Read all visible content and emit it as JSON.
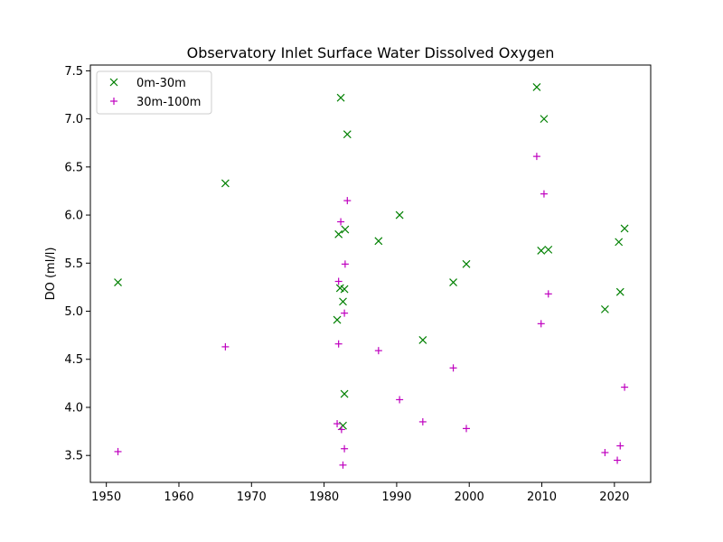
{
  "chart_data": {
    "type": "scatter",
    "title": "Observatory Inlet Surface Water Dissolved Oxygen",
    "xlabel": "",
    "ylabel": "DO (ml/l)",
    "xlim": [
      1947.8,
      2025.0
    ],
    "ylim": [
      3.22,
      7.56
    ],
    "xticks": [
      1950,
      1960,
      1970,
      1980,
      1990,
      2000,
      2010,
      2020
    ],
    "yticks": [
      3.5,
      4.0,
      4.5,
      5.0,
      5.5,
      6.0,
      6.5,
      7.0,
      7.5
    ],
    "ytick_labels": [
      "3.5",
      "4.0",
      "4.5",
      "5.0",
      "5.5",
      "6.0",
      "6.5",
      "7.0",
      "7.5"
    ],
    "grid": false,
    "legend_position": "top-left",
    "series": [
      {
        "name": "0m-30m",
        "marker": "x",
        "color": "#008000",
        "points": [
          [
            1951.6,
            5.3
          ],
          [
            1966.4,
            6.33
          ],
          [
            1982.3,
            7.22
          ],
          [
            1983.2,
            6.84
          ],
          [
            1982.9,
            5.85
          ],
          [
            1982.0,
            5.8
          ],
          [
            1987.5,
            5.73
          ],
          [
            1990.4,
            6.0
          ],
          [
            1982.2,
            5.24
          ],
          [
            1982.8,
            5.23
          ],
          [
            1982.6,
            5.1
          ],
          [
            1981.8,
            4.91
          ],
          [
            1993.6,
            4.7
          ],
          [
            1997.8,
            5.3
          ],
          [
            1999.6,
            5.49
          ],
          [
            1982.8,
            4.14
          ],
          [
            1982.6,
            3.81
          ],
          [
            2009.3,
            7.33
          ],
          [
            2010.3,
            7.0
          ],
          [
            2009.9,
            5.63
          ],
          [
            2010.9,
            5.64
          ],
          [
            2020.6,
            5.72
          ],
          [
            2021.4,
            5.86
          ],
          [
            2020.8,
            5.2
          ],
          [
            2018.7,
            5.02
          ]
        ]
      },
      {
        "name": "30m-100m",
        "marker": "+",
        "color": "#bf00bf",
        "points": [
          [
            1951.6,
            3.54
          ],
          [
            1966.4,
            4.63
          ],
          [
            1983.2,
            6.15
          ],
          [
            1982.3,
            5.93
          ],
          [
            1982.9,
            5.49
          ],
          [
            1982.0,
            5.31
          ],
          [
            1982.8,
            4.98
          ],
          [
            1982.0,
            4.66
          ],
          [
            1987.5,
            4.59
          ],
          [
            1997.8,
            4.41
          ],
          [
            1990.4,
            4.08
          ],
          [
            1993.6,
            3.85
          ],
          [
            1981.8,
            3.83
          ],
          [
            1982.4,
            3.77
          ],
          [
            1999.6,
            3.78
          ],
          [
            1982.8,
            3.57
          ],
          [
            1982.6,
            3.4
          ],
          [
            2009.3,
            6.61
          ],
          [
            2010.3,
            6.22
          ],
          [
            2010.9,
            5.18
          ],
          [
            2009.9,
            4.87
          ],
          [
            2021.4,
            4.21
          ],
          [
            2020.8,
            3.6
          ],
          [
            2018.7,
            3.53
          ],
          [
            2020.4,
            3.45
          ]
        ]
      }
    ]
  }
}
